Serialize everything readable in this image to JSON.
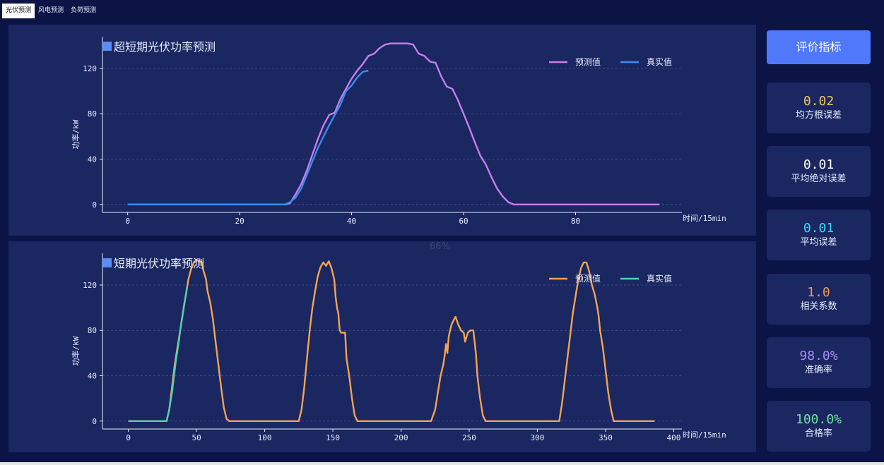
{
  "tabs": [
    {
      "label": "光伏预测",
      "active": true
    },
    {
      "label": "风电预测",
      "active": false
    },
    {
      "label": "负荷预测",
      "active": false
    }
  ],
  "watermark": "66%",
  "sidebar": {
    "button_label": "评价指标",
    "metrics": [
      {
        "value": "0.02",
        "label": "均方根误差",
        "color": "#f2c55c"
      },
      {
        "value": "0.01",
        "label": "平均绝对误差",
        "color": "#ffffff"
      },
      {
        "value": "0.01",
        "label": "平均误差",
        "color": "#3fd6f5"
      },
      {
        "value": "1.0",
        "label": "相关系数",
        "color": "#f39a54"
      },
      {
        "value": "98.0%",
        "label": "准确率",
        "color": "#a98bf6"
      },
      {
        "value": "100.0%",
        "label": "合格率",
        "color": "#6ce3a0"
      }
    ]
  },
  "chart_data": [
    {
      "type": "line",
      "title": "超短期光伏功率预测",
      "xlabel": "时间/15min",
      "ylabel": "功率/kW",
      "xlim": [
        -4.5,
        99
      ],
      "ylim": [
        -7,
        148
      ],
      "xticks": [
        0,
        20,
        40,
        60,
        80
      ],
      "yticks": [
        0,
        40,
        80,
        120
      ],
      "grid": true,
      "legend": "top-right",
      "series": [
        {
          "name": "预测值",
          "color": "#c77dee",
          "points": [
            [
              0,
              0
            ],
            [
              27,
              0
            ],
            [
              28,
              0
            ],
            [
              29,
              1
            ],
            [
              30,
              9
            ],
            [
              31,
              18
            ],
            [
              32,
              30
            ],
            [
              33,
              44
            ],
            [
              34,
              58
            ],
            [
              35,
              70
            ],
            [
              36,
              79
            ],
            [
              37,
              81
            ],
            [
              38,
              93
            ],
            [
              39,
              102
            ],
            [
              40,
              111
            ],
            [
              41,
              118
            ],
            [
              42,
              124
            ],
            [
              43,
              131
            ],
            [
              44,
              133
            ],
            [
              45,
              138
            ],
            [
              46,
              141
            ],
            [
              47,
              142
            ],
            [
              48,
              142
            ],
            [
              49,
              142
            ],
            [
              50,
              142
            ],
            [
              51,
              141
            ],
            [
              52,
              133
            ],
            [
              53,
              131
            ],
            [
              54,
              126
            ],
            [
              55,
              125
            ],
            [
              56,
              113
            ],
            [
              57,
              104
            ],
            [
              58,
              102
            ],
            [
              59,
              92
            ],
            [
              60,
              80
            ],
            [
              61,
              68
            ],
            [
              62,
              55
            ],
            [
              63,
              43
            ],
            [
              64,
              35
            ],
            [
              65,
              24
            ],
            [
              66,
              14
            ],
            [
              67,
              7
            ],
            [
              68,
              2
            ],
            [
              69,
              0
            ],
            [
              70,
              0
            ],
            [
              95,
              0
            ]
          ]
        },
        {
          "name": "真实值",
          "color": "#3a8bf0",
          "points": [
            [
              0,
              0
            ],
            [
              28,
              0
            ],
            [
              29,
              2
            ],
            [
              30,
              6
            ],
            [
              31,
              14
            ],
            [
              32,
              26
            ],
            [
              33,
              38
            ],
            [
              34,
              50
            ],
            [
              35,
              60
            ],
            [
              36,
              70
            ],
            [
              37,
              79
            ],
            [
              38,
              88
            ],
            [
              39,
              100
            ],
            [
              40,
              105
            ],
            [
              41,
              112
            ],
            [
              42,
              117
            ],
            [
              43,
              118
            ]
          ]
        }
      ]
    },
    {
      "type": "line",
      "title": "短期光伏功率预测",
      "xlabel": "时间/15min",
      "ylabel": "功率/kW",
      "xlim": [
        -19,
        406
      ],
      "ylim": [
        -7,
        148
      ],
      "xticks": [
        0,
        50,
        100,
        150,
        200,
        250,
        300,
        350,
        400
      ],
      "yticks": [
        0,
        40,
        80,
        120
      ],
      "grid": true,
      "legend": "top-right",
      "series": [
        {
          "name": "预测值",
          "color": "#f5a352",
          "points": [
            [
              0,
              0
            ],
            [
              28,
              0
            ],
            [
              30,
              10
            ],
            [
              32,
              30
            ],
            [
              34,
              50
            ],
            [
              36,
              65
            ],
            [
              38,
              80
            ],
            [
              40,
              95
            ],
            [
              42,
              110
            ],
            [
              44,
              125
            ],
            [
              46,
              134
            ],
            [
              48,
              140
            ],
            [
              50,
              142
            ],
            [
              52,
              141
            ],
            [
              54,
              140
            ],
            [
              55,
              133
            ],
            [
              57,
              125
            ],
            [
              58,
              115
            ],
            [
              60,
              105
            ],
            [
              62,
              90
            ],
            [
              64,
              70
            ],
            [
              66,
              50
            ],
            [
              68,
              30
            ],
            [
              70,
              12
            ],
            [
              72,
              2
            ],
            [
              74,
              0
            ],
            [
              125,
              0
            ],
            [
              127,
              10
            ],
            [
              129,
              30
            ],
            [
              131,
              55
            ],
            [
              133,
              80
            ],
            [
              135,
              100
            ],
            [
              137,
              115
            ],
            [
              139,
              128
            ],
            [
              141,
              136
            ],
            [
              143,
              140
            ],
            [
              145,
              137
            ],
            [
              147,
              141
            ],
            [
              149,
              135
            ],
            [
              151,
              125
            ],
            [
              152,
              110
            ],
            [
              153,
              100
            ],
            [
              154,
              95
            ],
            [
              155,
              80
            ],
            [
              156,
              78
            ],
            [
              159,
              78
            ],
            [
              160,
              55
            ],
            [
              162,
              40
            ],
            [
              164,
              20
            ],
            [
              166,
              5
            ],
            [
              168,
              0
            ],
            [
              222,
              0
            ],
            [
              225,
              10
            ],
            [
              227,
              25
            ],
            [
              229,
              40
            ],
            [
              231,
              50
            ],
            [
              232,
              58
            ],
            [
              233,
              68
            ],
            [
              234,
              60
            ],
            [
              235,
              75
            ],
            [
              237,
              85
            ],
            [
              239,
              90
            ],
            [
              240,
              92
            ],
            [
              242,
              85
            ],
            [
              244,
              80
            ],
            [
              246,
              78
            ],
            [
              247,
              70
            ],
            [
              249,
              78
            ],
            [
              251,
              80
            ],
            [
              253,
              80
            ],
            [
              254,
              70
            ],
            [
              255,
              58
            ],
            [
              256,
              40
            ],
            [
              258,
              20
            ],
            [
              260,
              5
            ],
            [
              262,
              0
            ],
            [
              316,
              0
            ],
            [
              318,
              15
            ],
            [
              320,
              35
            ],
            [
              322,
              55
            ],
            [
              324,
              75
            ],
            [
              326,
              95
            ],
            [
              328,
              110
            ],
            [
              330,
              125
            ],
            [
              332,
              135
            ],
            [
              334,
              140
            ],
            [
              336,
              140
            ],
            [
              338,
              132
            ],
            [
              340,
              120
            ],
            [
              342,
              112
            ],
            [
              344,
              100
            ],
            [
              345,
              92
            ],
            [
              346,
              80
            ],
            [
              348,
              65
            ],
            [
              350,
              45
            ],
            [
              352,
              25
            ],
            [
              354,
              10
            ],
            [
              356,
              0
            ],
            [
              386,
              0
            ]
          ]
        },
        {
          "name": "真实值",
          "color": "#4fd1b4",
          "points": [
            [
              0,
              0
            ],
            [
              28,
              0
            ],
            [
              29,
              5
            ],
            [
              30,
              10
            ],
            [
              31,
              18
            ],
            [
              32,
              25
            ],
            [
              33,
              35
            ],
            [
              34,
              45
            ],
            [
              35,
              55
            ],
            [
              36,
              62
            ],
            [
              37,
              70
            ],
            [
              38,
              80
            ],
            [
              39,
              88
            ],
            [
              40,
              95
            ],
            [
              41,
              104
            ],
            [
              42,
              110
            ],
            [
              43,
              117
            ]
          ]
        }
      ]
    }
  ]
}
